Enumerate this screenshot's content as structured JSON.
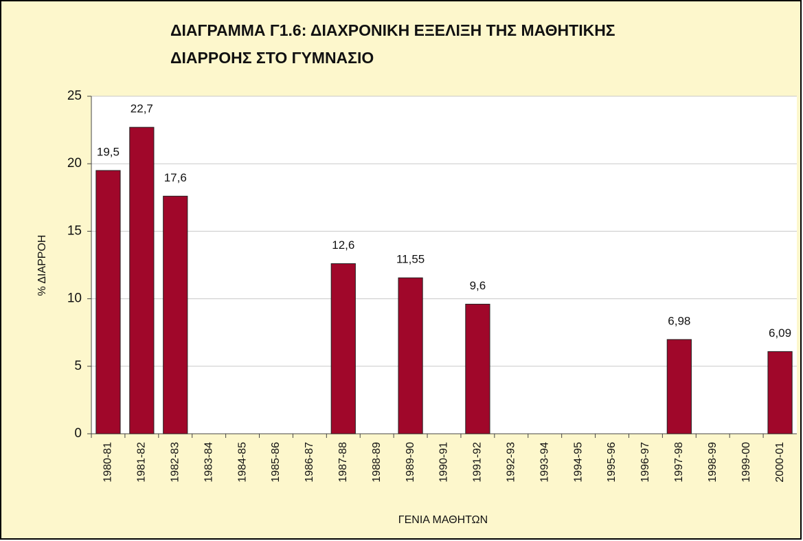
{
  "chart_data": {
    "type": "bar",
    "title": [
      "ΔΙΑΓΡΑΜΜΑ Γ1.6: ΔΙΑΧΡΟΝΙΚΗ ΕΞΕΛΙΞΗ ΤΗΣ ΜΑΘΗΤΙΚΗΣ",
      "ΔΙΑΡΡΟΗΣ ΣΤΟ ΓΥΜΝΑΣΙΟ"
    ],
    "x_label": "ΓΕΝΙΑ ΜΑΘΗΤΩΝ",
    "y_label": "% ΔΙΑΡΡΟΗ",
    "categories": [
      "1980-81",
      "1981-82",
      "1982-83",
      "1983-84",
      "1984-85",
      "1985-86",
      "1986-87",
      "1987-88",
      "1988-89",
      "1989-90",
      "1990-91",
      "1991-92",
      "1992-93",
      "1993-94",
      "1994-95",
      "1995-96",
      "1996-97",
      "1997-98",
      "1998-99",
      "1999-00",
      "2000-01"
    ],
    "values": [
      19.5,
      22.7,
      17.6,
      null,
      null,
      null,
      null,
      12.6,
      null,
      11.55,
      null,
      9.6,
      null,
      null,
      null,
      null,
      null,
      6.98,
      null,
      null,
      6.09
    ],
    "value_labels": [
      "19,5",
      "22,7",
      "17,6",
      null,
      null,
      null,
      null,
      "12,6",
      null,
      "11,55",
      null,
      "9,6",
      null,
      null,
      null,
      null,
      null,
      "6,98",
      null,
      null,
      "6,09"
    ],
    "color": "#a0072a",
    "ylim": [
      0,
      25
    ],
    "yticks": [
      0,
      5,
      10,
      15,
      20,
      25
    ],
    "grid": true
  }
}
